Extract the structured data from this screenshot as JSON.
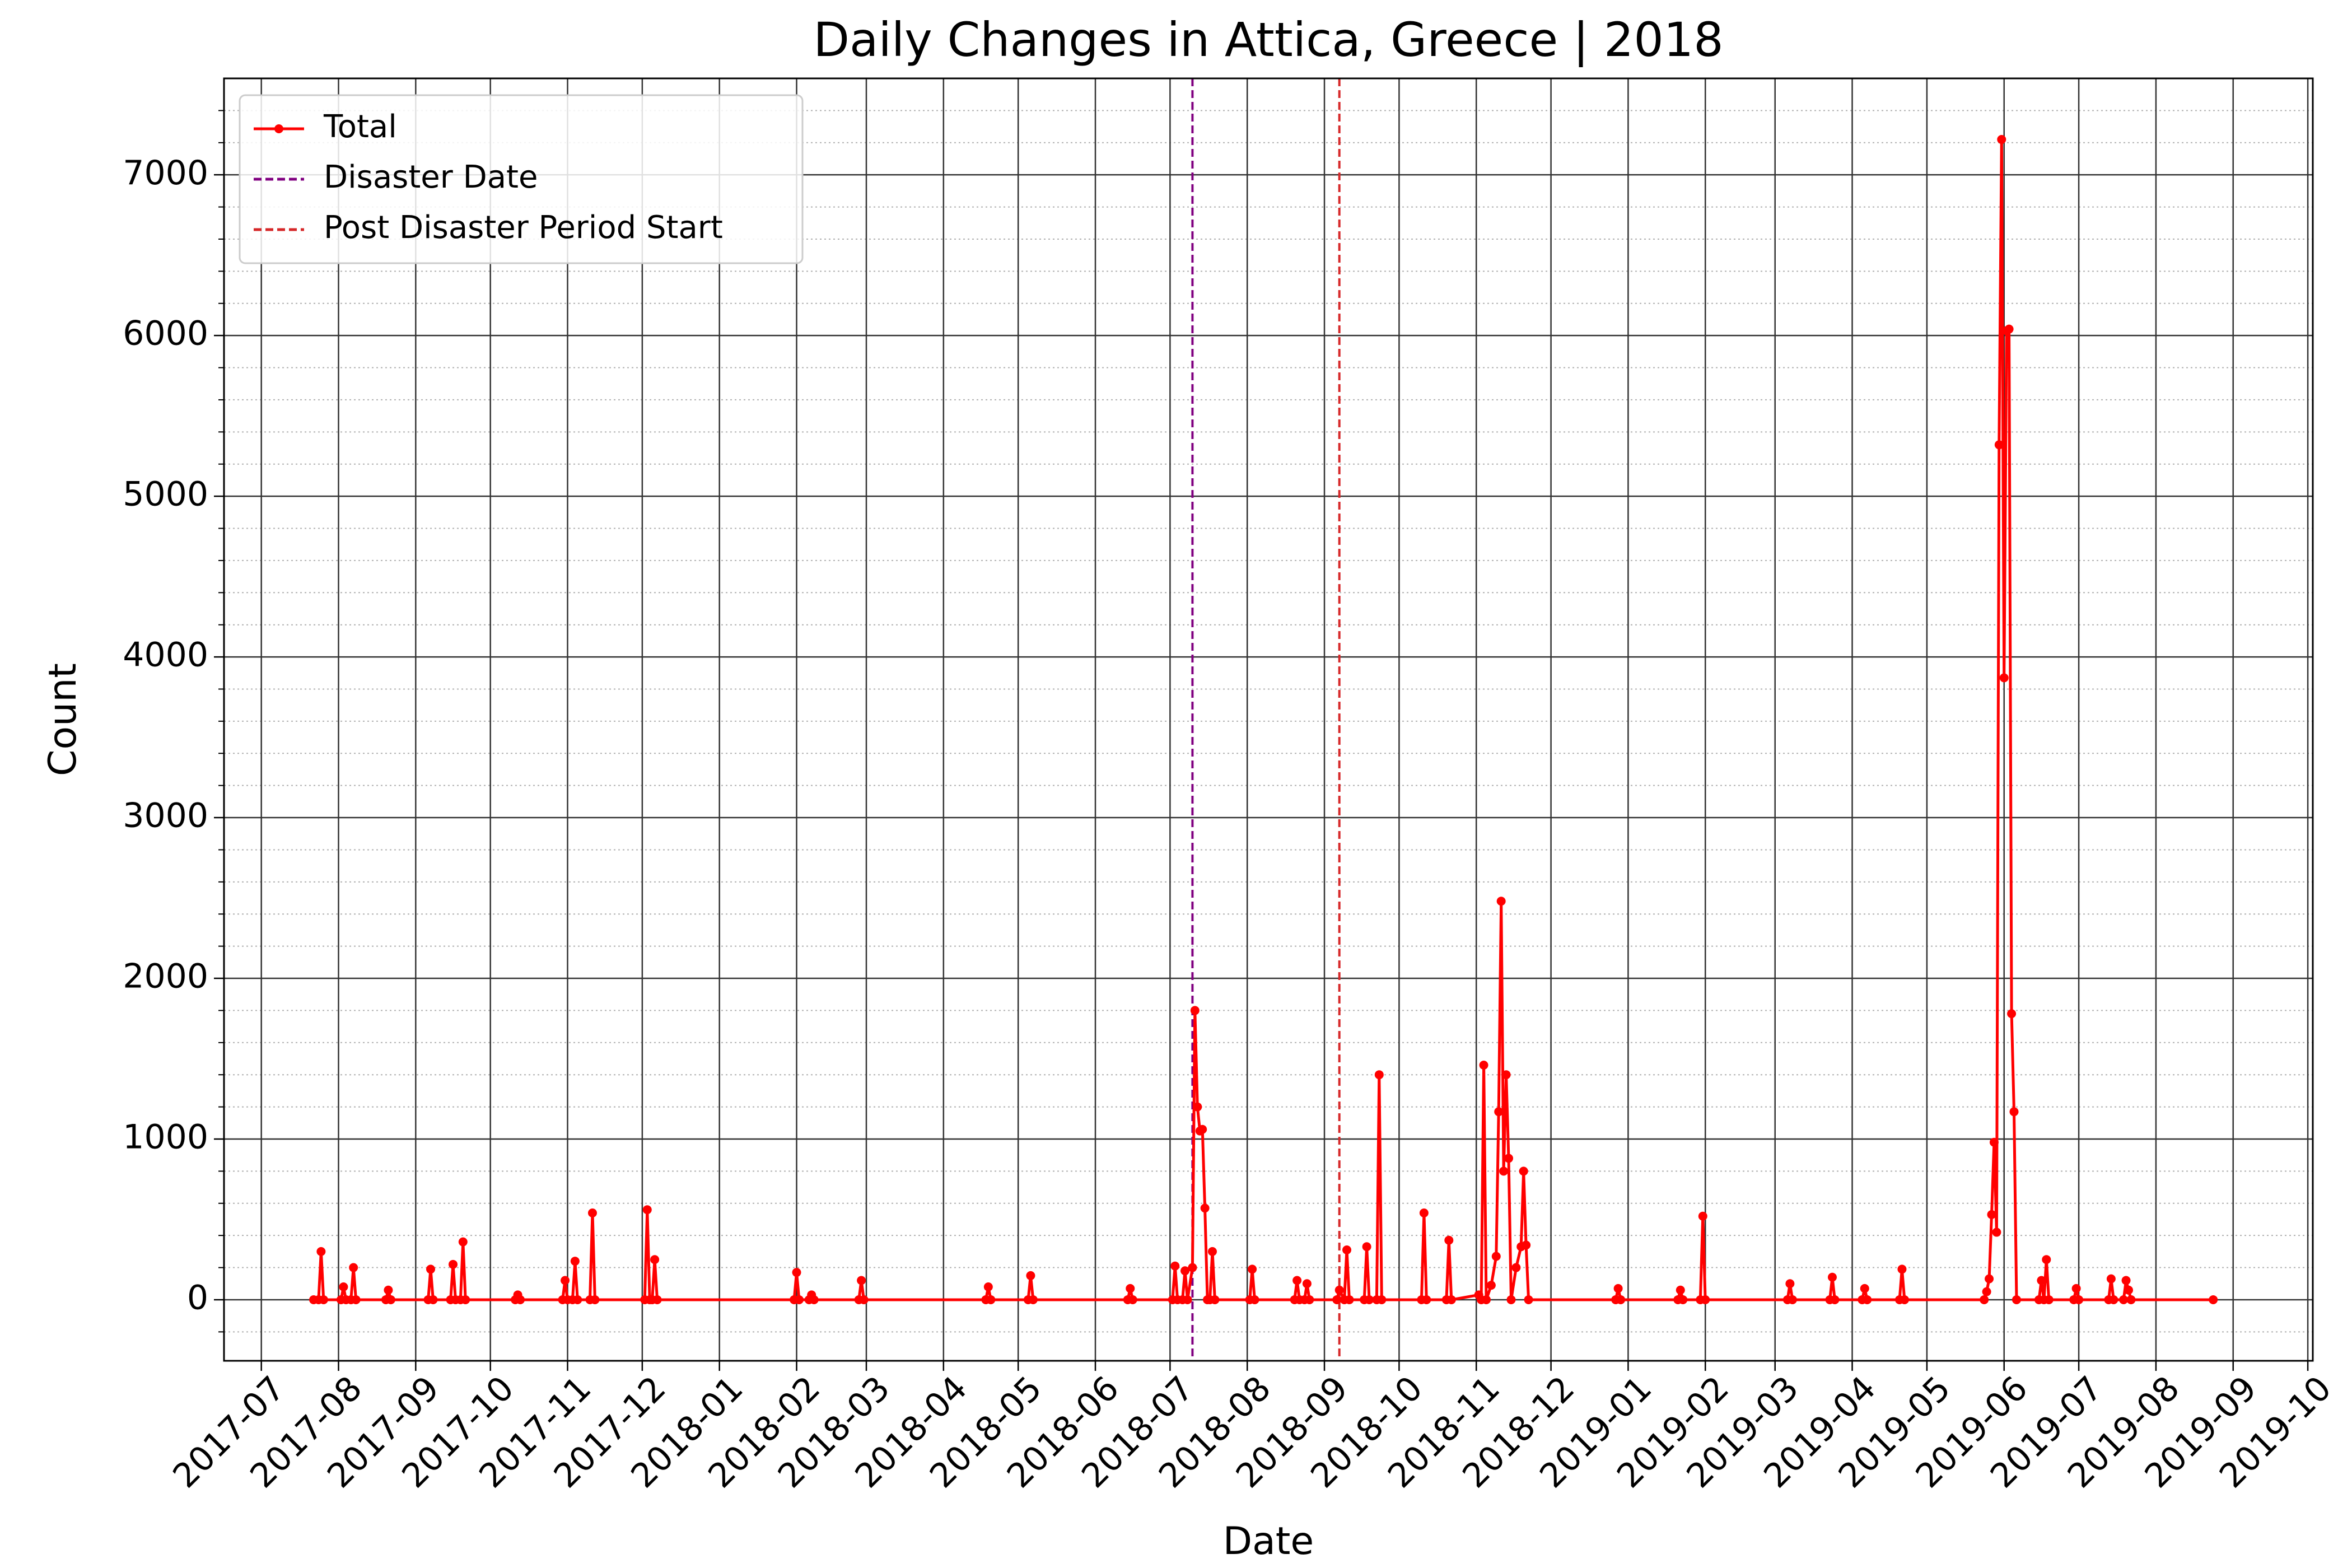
{
  "chart_data": {
    "type": "line",
    "title": "Daily Changes in Attica, Greece | 2018",
    "xlabel": "Date",
    "ylabel": "Count",
    "xlim": [
      "2017-06-16",
      "2019-10-03"
    ],
    "xticks": [
      "2017-07",
      "2017-08",
      "2017-09",
      "2017-10",
      "2017-11",
      "2017-12",
      "2018-01",
      "2018-02",
      "2018-03",
      "2018-04",
      "2018-05",
      "2018-06",
      "2018-07",
      "2018-08",
      "2018-09",
      "2018-10",
      "2018-11",
      "2018-12",
      "2019-01",
      "2019-02",
      "2019-03",
      "2019-04",
      "2019-05",
      "2019-06",
      "2019-07",
      "2019-08",
      "2019-09",
      "2019-10"
    ],
    "ylim": [
      -380,
      7600
    ],
    "yticks": [
      0,
      1000,
      2000,
      3000,
      4000,
      5000,
      6000,
      7000
    ],
    "yticks_minor": [
      -200,
      200,
      400,
      600,
      800,
      1200,
      1400,
      1600,
      1800,
      2200,
      2400,
      2600,
      2800,
      3200,
      3400,
      3600,
      3800,
      4200,
      4400,
      4600,
      4800,
      5200,
      5400,
      5600,
      5800,
      6200,
      6400,
      6600,
      6800,
      7200,
      7400
    ],
    "grid": true,
    "legend": "upper left",
    "x": [
      "2017-07-22",
      "2017-07-24",
      "2017-07-25",
      "2017-07-26",
      "2017-08-02",
      "2017-08-03",
      "2017-08-04",
      "2017-08-06",
      "2017-08-07",
      "2017-08-08",
      "2017-08-20",
      "2017-08-21",
      "2017-08-22",
      "2017-09-06",
      "2017-09-07",
      "2017-09-08",
      "2017-09-15",
      "2017-09-16",
      "2017-09-17",
      "2017-09-19",
      "2017-09-20",
      "2017-09-21",
      "2017-10-11",
      "2017-10-12",
      "2017-10-13",
      "2017-10-30",
      "2017-10-31",
      "2017-11-01",
      "2017-11-03",
      "2017-11-04",
      "2017-11-05",
      "2017-11-10",
      "2017-11-11",
      "2017-11-12",
      "2017-12-02",
      "2017-12-03",
      "2017-12-04",
      "2017-12-05",
      "2017-12-06",
      "2017-12-07",
      "2018-01-31",
      "2018-02-01",
      "2018-02-02",
      "2018-02-06",
      "2018-02-07",
      "2018-02-08",
      "2018-02-26",
      "2018-02-27",
      "2018-02-28",
      "2018-04-18",
      "2018-04-19",
      "2018-04-20",
      "2018-05-05",
      "2018-05-06",
      "2018-05-07",
      "2018-06-14",
      "2018-06-15",
      "2018-06-16",
      "2018-07-02",
      "2018-07-03",
      "2018-07-04",
      "2018-07-06",
      "2018-07-07",
      "2018-07-08",
      "2018-07-10",
      "2018-07-11",
      "2018-07-12",
      "2018-07-13",
      "2018-07-14",
      "2018-07-15",
      "2018-07-16",
      "2018-07-17",
      "2018-07-18",
      "2018-07-19",
      "2018-08-02",
      "2018-08-03",
      "2018-08-04",
      "2018-08-20",
      "2018-08-21",
      "2018-08-22",
      "2018-08-24",
      "2018-08-25",
      "2018-08-26",
      "2018-09-06",
      "2018-09-07",
      "2018-09-09",
      "2018-09-10",
      "2018-09-11",
      "2018-09-17",
      "2018-09-18",
      "2018-09-19",
      "2018-09-22",
      "2018-09-23",
      "2018-09-24",
      "2018-10-10",
      "2018-10-11",
      "2018-10-12",
      "2018-10-20",
      "2018-10-21",
      "2018-10-22",
      "2018-11-02",
      "2018-11-03",
      "2018-11-04",
      "2018-11-05",
      "2018-11-07",
      "2018-11-09",
      "2018-11-10",
      "2018-11-11",
      "2018-11-12",
      "2018-11-13",
      "2018-11-14",
      "2018-11-15",
      "2018-11-17",
      "2018-11-19",
      "2018-11-20",
      "2018-11-21",
      "2018-11-22",
      "2018-12-27",
      "2018-12-28",
      "2018-12-29",
      "2019-01-21",
      "2019-01-22",
      "2019-01-23",
      "2019-01-30",
      "2019-01-31",
      "2019-02-01",
      "2019-03-06",
      "2019-03-07",
      "2019-03-08",
      "2019-03-23",
      "2019-03-24",
      "2019-03-25",
      "2019-04-05",
      "2019-04-06",
      "2019-04-07",
      "2019-04-20",
      "2019-04-21",
      "2019-04-22",
      "2019-05-24",
      "2019-05-25",
      "2019-05-26",
      "2019-05-27",
      "2019-05-28",
      "2019-05-29",
      "2019-05-30",
      "2019-05-31",
      "2019-06-01",
      "2019-06-02",
      "2019-06-03",
      "2019-06-04",
      "2019-06-05",
      "2019-06-06",
      "2019-06-15",
      "2019-06-16",
      "2019-06-17",
      "2019-06-18",
      "2019-06-19",
      "2019-06-29",
      "2019-06-30",
      "2019-07-01",
      "2019-07-13",
      "2019-07-14",
      "2019-07-15",
      "2019-07-19",
      "2019-07-20",
      "2019-07-21",
      "2019-07-22",
      "2019-08-24"
    ],
    "series": [
      {
        "name": "Total",
        "color": "#ff0000",
        "values": [
          0,
          0,
          300,
          0,
          0,
          80,
          0,
          0,
          200,
          0,
          0,
          60,
          0,
          0,
          190,
          0,
          0,
          220,
          0,
          0,
          360,
          0,
          0,
          30,
          0,
          0,
          120,
          0,
          0,
          240,
          0,
          0,
          540,
          0,
          0,
          560,
          0,
          0,
          250,
          0,
          0,
          170,
          0,
          0,
          30,
          0,
          0,
          120,
          0,
          0,
          80,
          0,
          0,
          150,
          0,
          0,
          70,
          0,
          0,
          210,
          0,
          0,
          180,
          0,
          200,
          1800,
          1200,
          1050,
          1060,
          570,
          0,
          0,
          300,
          0,
          0,
          190,
          0,
          0,
          120,
          0,
          0,
          100,
          0,
          0,
          60,
          0,
          310,
          0,
          0,
          330,
          0,
          0,
          1400,
          0,
          0,
          540,
          0,
          0,
          370,
          0,
          30,
          0,
          1460,
          0,
          90,
          270,
          1170,
          2480,
          800,
          1400,
          880,
          0,
          200,
          330,
          800,
          340,
          0,
          0,
          70,
          0,
          0,
          60,
          0,
          0,
          520,
          0,
          0,
          100,
          0,
          0,
          140,
          0,
          0,
          70,
          0,
          0,
          190,
          0,
          0,
          50,
          130,
          530,
          980,
          420,
          5320,
          7220,
          3870,
          6030,
          6040,
          1780,
          1170,
          0,
          0,
          120,
          0,
          250,
          0,
          0,
          70,
          0,
          0,
          130,
          0,
          0,
          120,
          60,
          0,
          0
        ]
      }
    ],
    "vlines": [
      {
        "name": "Disaster Date",
        "x": "2018-07-10",
        "color": "#800080"
      },
      {
        "name": "Post Disaster Period Start",
        "x": "2018-09-07",
        "color": "#d62728"
      }
    ]
  }
}
